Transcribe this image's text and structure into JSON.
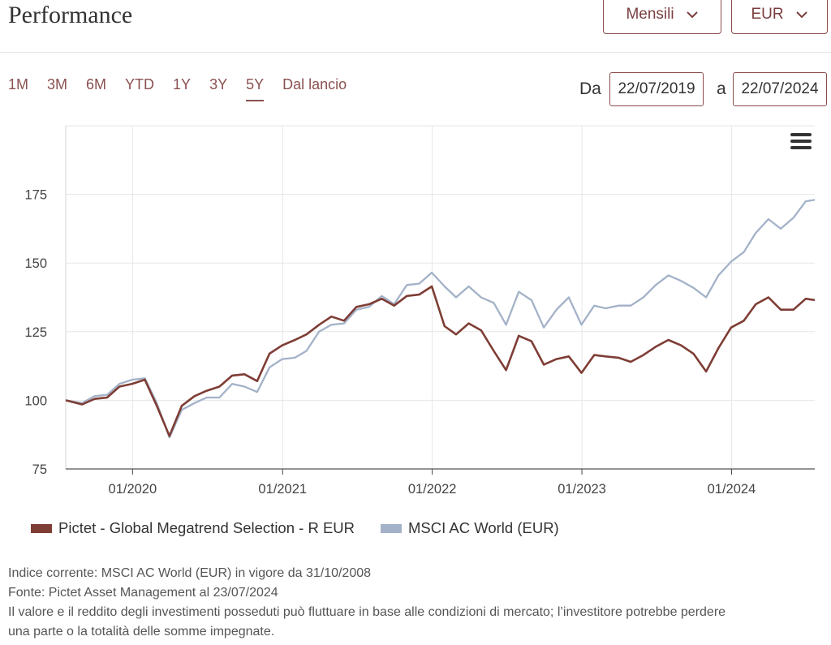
{
  "header": {
    "title": "Performance",
    "period_select": "Mensili",
    "currency_select": "EUR"
  },
  "ranges": [
    "1M",
    "3M",
    "6M",
    "YTD",
    "1Y",
    "3Y",
    "5Y",
    "Dal lancio"
  ],
  "active_range": "5Y",
  "date_range": {
    "from_label": "Da",
    "from": "22/07/2019",
    "to_label": "a",
    "to": "22/07/2024"
  },
  "colors": {
    "fund": "#7e3d35",
    "index": "#a3b2c8",
    "accent": "#8a4b4b"
  },
  "menu_icon": "hamburger-icon",
  "chart_data": {
    "type": "line",
    "title": "",
    "xlabel": "",
    "ylabel": "",
    "ylim": [
      75,
      200
    ],
    "yticks": [
      75,
      100,
      125,
      150,
      175
    ],
    "xlim": [
      "2019-07-22",
      "2024-07-22"
    ],
    "xticks": [
      "01/2020",
      "01/2021",
      "01/2022",
      "01/2023",
      "01/2024"
    ],
    "grid": true,
    "legend": "bottom",
    "x": [
      "2019-07-22",
      "2019-08-31",
      "2019-09-30",
      "2019-10-31",
      "2019-11-30",
      "2019-12-31",
      "2020-01-31",
      "2020-02-29",
      "2020-03-31",
      "2020-04-30",
      "2020-05-31",
      "2020-06-30",
      "2020-07-31",
      "2020-08-31",
      "2020-09-30",
      "2020-10-31",
      "2020-11-30",
      "2020-12-31",
      "2021-01-31",
      "2021-02-28",
      "2021-03-31",
      "2021-04-30",
      "2021-05-31",
      "2021-06-30",
      "2021-07-31",
      "2021-08-31",
      "2021-09-30",
      "2021-10-31",
      "2021-11-30",
      "2021-12-31",
      "2022-01-31",
      "2022-02-28",
      "2022-03-31",
      "2022-04-30",
      "2022-05-31",
      "2022-06-30",
      "2022-07-31",
      "2022-08-31",
      "2022-09-30",
      "2022-10-31",
      "2022-11-30",
      "2022-12-31",
      "2023-01-31",
      "2023-02-28",
      "2023-03-31",
      "2023-04-30",
      "2023-05-31",
      "2023-06-30",
      "2023-07-31",
      "2023-08-31",
      "2023-09-30",
      "2023-10-31",
      "2023-11-30",
      "2023-12-31",
      "2024-01-31",
      "2024-02-29",
      "2024-03-31",
      "2024-04-30",
      "2024-05-31",
      "2024-06-30",
      "2024-07-22"
    ],
    "series": [
      {
        "name": "Pictet - Global Megatrend Selection - R EUR",
        "values": [
          100,
          98.5,
          100.5,
          101,
          105,
          106,
          107.5,
          98,
          87,
          98,
          101.5,
          103.5,
          105,
          109,
          109.5,
          107,
          117,
          120,
          122,
          124,
          127.5,
          130.5,
          129,
          134,
          135,
          137,
          134.5,
          138,
          138.5,
          141.5,
          127,
          124,
          128,
          125.5,
          118,
          111,
          123.5,
          121.5,
          113,
          115,
          116,
          110,
          116.5,
          116,
          115.5,
          114,
          116.5,
          119.5,
          122,
          120,
          117,
          110.5,
          119,
          126.5,
          129,
          135,
          137.5,
          133,
          133,
          137,
          136.5
        ]
      },
      {
        "name": "MSCI AC World (EUR)",
        "values": [
          100,
          99,
          101.5,
          102,
          106,
          107.5,
          108,
          99,
          86.5,
          96.5,
          99,
          101,
          101,
          106,
          105,
          103,
          112,
          115,
          115.5,
          118,
          125,
          127.5,
          128,
          133,
          134,
          138,
          135,
          142,
          142.5,
          146.5,
          141.5,
          137.5,
          141.5,
          137.5,
          135.5,
          127.5,
          139.5,
          136.5,
          126.5,
          133,
          137.5,
          127.5,
          134.5,
          133.5,
          134.5,
          134.5,
          137.5,
          142,
          145.5,
          143.5,
          141,
          137.5,
          145.5,
          150.5,
          154,
          161,
          166,
          162.5,
          166.5,
          172.5,
          173
        ]
      }
    ]
  },
  "footer": {
    "line1": "Indice corrente: MSCI AC World (EUR) in vigore da 31/10/2008",
    "line2": "Fonte: Pictet Asset Management al 23/07/2024",
    "line3": "Il valore e il reddito degli investimenti posseduti può fluttuare in base alle condizioni di mercato; l’investitore potrebbe perdere",
    "line4": "una parte o la totalità delle somme impegnate."
  }
}
